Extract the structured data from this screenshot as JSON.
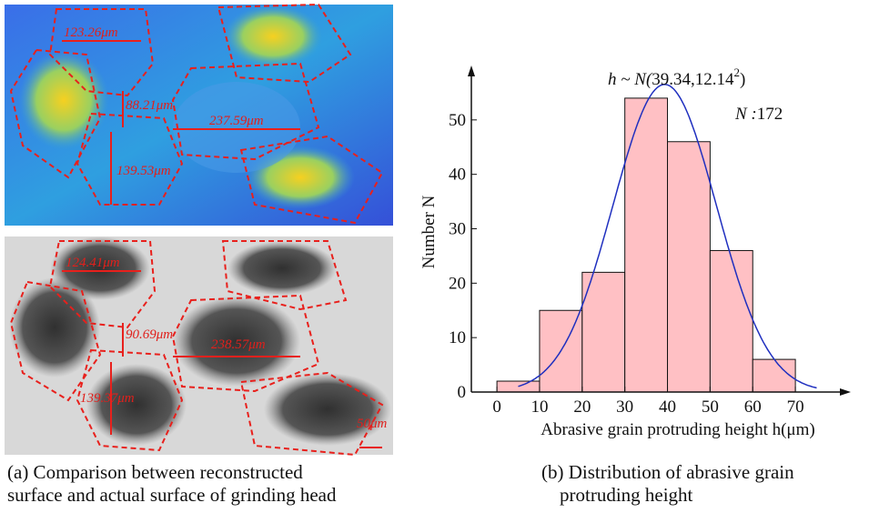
{
  "chart_data": {
    "type": "histogram",
    "bins": [
      0,
      10,
      20,
      30,
      40,
      50,
      60,
      70
    ],
    "values": [
      2,
      15,
      22,
      54,
      46,
      26,
      6
    ],
    "color": "#ffc0c4",
    "curve_color": "#1f2fbf",
    "curve_x": [
      5,
      75
    ],
    "xlim": [
      -6,
      83
    ],
    "xticks": [
      0,
      10,
      20,
      30,
      40,
      50,
      60,
      70
    ],
    "ylim": [
      0,
      60
    ],
    "yticks": [
      0,
      10,
      20,
      30,
      40,
      50
    ],
    "xlabel": "Abrasive grain protruding height h(μm)",
    "ylabel": "Number N",
    "fit": {
      "lead": "h ~ N(",
      "mu": 39.34,
      "comma": ",",
      "sigma": 12.14,
      "power": "2",
      "end": ")",
      "n_label": "N :",
      "n": 172
    }
  },
  "images": {
    "reconstructed": [
      "123.26μm",
      "88.21μm",
      "237.59μm",
      "139.53μm"
    ],
    "actual": [
      "124.41μm",
      "90.69μm",
      "238.57μm",
      "139.37μm"
    ],
    "scale": "50μm"
  },
  "captions": {
    "a": [
      "(a) Comparison between reconstructed",
      "surface and actual surface of grinding head"
    ],
    "b": [
      "(b) Distribution of abrasive grain",
      "protruding height"
    ]
  }
}
